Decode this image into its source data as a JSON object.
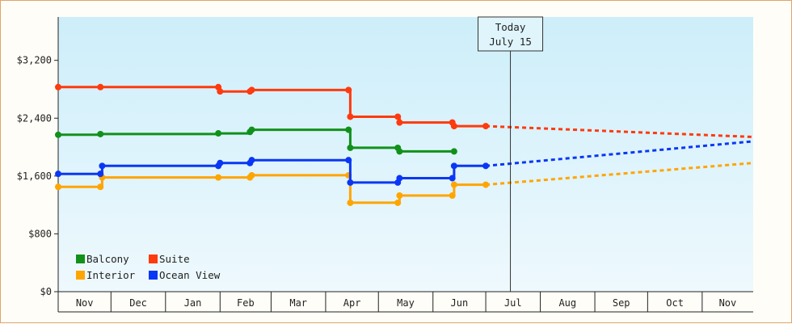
{
  "chart_data": {
    "type": "line",
    "title": "",
    "xlabel": "",
    "ylabel": "",
    "ylim": [
      0,
      3800
    ],
    "yticks": [
      0,
      800,
      1600,
      2400,
      3200
    ],
    "ytick_labels": [
      "$0",
      "$800",
      "$1,600",
      "$2,400",
      "$3,200"
    ],
    "x_months": [
      "Nov",
      "Dec",
      "Jan",
      "Feb",
      "Mar",
      "Apr",
      "May",
      "Jun",
      "Jul",
      "Aug",
      "Sep",
      "Oct",
      "Nov"
    ],
    "x_start": "2023-11-01",
    "x_end": "2024-11-30",
    "today": {
      "line1": "Today",
      "line2": "July 15",
      "date": "2024-07-15"
    },
    "grid": false,
    "legend_position": "bottom-left",
    "series": [
      {
        "name": "Balcony",
        "color": "#11911a",
        "values": [
          {
            "date": "2023-11-01",
            "price": 2170
          },
          {
            "date": "2023-11-25",
            "price": 2180
          },
          {
            "date": "2024-01-31",
            "price": 2190
          },
          {
            "date": "2024-02-18",
            "price": 2210
          },
          {
            "date": "2024-02-19",
            "price": 2240
          },
          {
            "date": "2024-04-14",
            "price": 2240
          },
          {
            "date": "2024-04-15",
            "price": 1990
          },
          {
            "date": "2024-05-12",
            "price": 1990
          },
          {
            "date": "2024-05-13",
            "price": 1940
          },
          {
            "date": "2024-06-13",
            "price": 1940
          }
        ],
        "forecast": []
      },
      {
        "name": "Suite",
        "color": "#ff3a0e",
        "values": [
          {
            "date": "2023-11-01",
            "price": 2830
          },
          {
            "date": "2023-11-25",
            "price": 2830
          },
          {
            "date": "2024-01-31",
            "price": 2830
          },
          {
            "date": "2024-02-01",
            "price": 2770
          },
          {
            "date": "2024-02-18",
            "price": 2770
          },
          {
            "date": "2024-02-19",
            "price": 2790
          },
          {
            "date": "2024-04-14",
            "price": 2790
          },
          {
            "date": "2024-04-15",
            "price": 2420
          },
          {
            "date": "2024-05-12",
            "price": 2420
          },
          {
            "date": "2024-05-13",
            "price": 2340
          },
          {
            "date": "2024-06-12",
            "price": 2340
          },
          {
            "date": "2024-06-13",
            "price": 2290
          },
          {
            "date": "2024-07-01",
            "price": 2290
          }
        ],
        "forecast": [
          {
            "date": "2024-07-01",
            "price": 2290
          },
          {
            "date": "2024-11-30",
            "price": 2140
          }
        ]
      },
      {
        "name": "Interior",
        "color": "#ffa500",
        "values": [
          {
            "date": "2023-11-01",
            "price": 1450
          },
          {
            "date": "2023-11-25",
            "price": 1450
          },
          {
            "date": "2023-11-26",
            "price": 1580
          },
          {
            "date": "2024-01-31",
            "price": 1580
          },
          {
            "date": "2024-02-18",
            "price": 1580
          },
          {
            "date": "2024-02-19",
            "price": 1610
          },
          {
            "date": "2024-04-14",
            "price": 1610
          },
          {
            "date": "2024-04-15",
            "price": 1230
          },
          {
            "date": "2024-05-12",
            "price": 1230
          },
          {
            "date": "2024-05-13",
            "price": 1330
          },
          {
            "date": "2024-06-12",
            "price": 1330
          },
          {
            "date": "2024-06-13",
            "price": 1480
          },
          {
            "date": "2024-07-01",
            "price": 1480
          }
        ],
        "forecast": [
          {
            "date": "2024-07-01",
            "price": 1480
          },
          {
            "date": "2024-11-30",
            "price": 1780
          }
        ]
      },
      {
        "name": "Ocean View",
        "color": "#0a37f5",
        "values": [
          {
            "date": "2023-11-01",
            "price": 1630
          },
          {
            "date": "2023-11-25",
            "price": 1630
          },
          {
            "date": "2023-11-26",
            "price": 1740
          },
          {
            "date": "2024-01-31",
            "price": 1740
          },
          {
            "date": "2024-02-01",
            "price": 1780
          },
          {
            "date": "2024-02-18",
            "price": 1780
          },
          {
            "date": "2024-02-19",
            "price": 1820
          },
          {
            "date": "2024-04-14",
            "price": 1820
          },
          {
            "date": "2024-04-15",
            "price": 1510
          },
          {
            "date": "2024-05-12",
            "price": 1510
          },
          {
            "date": "2024-05-13",
            "price": 1570
          },
          {
            "date": "2024-06-12",
            "price": 1570
          },
          {
            "date": "2024-06-13",
            "price": 1740
          },
          {
            "date": "2024-07-01",
            "price": 1740
          }
        ],
        "forecast": [
          {
            "date": "2024-07-01",
            "price": 1740
          },
          {
            "date": "2024-11-30",
            "price": 2080
          }
        ]
      }
    ]
  }
}
